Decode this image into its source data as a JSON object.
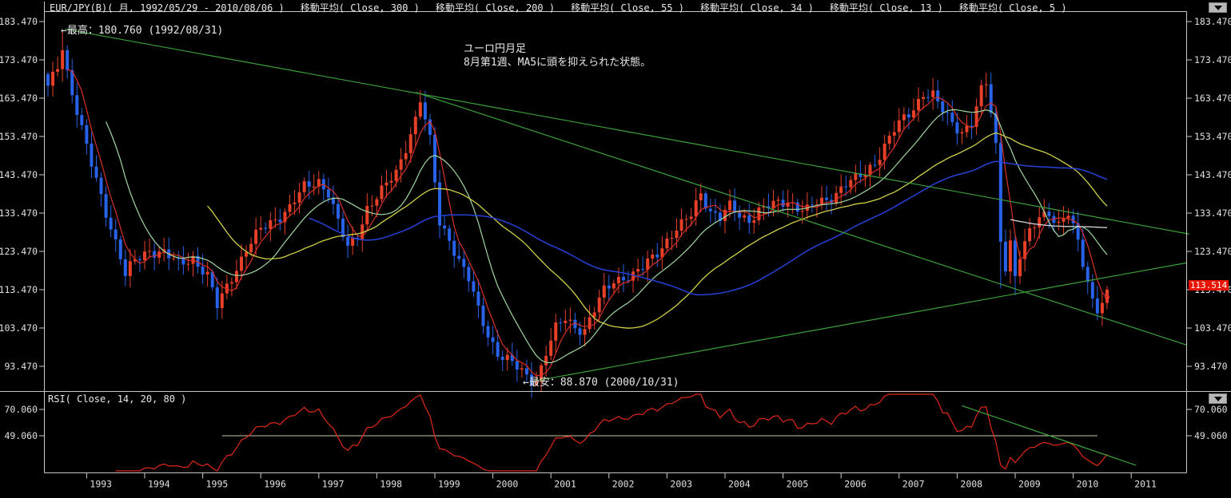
{
  "titlebar": {
    "instrument": "EUR/JPY(B)( 月, 1992/05/29 - 2010/08/06 )",
    "indicators": [
      "移動平均( Close, 300 )",
      "移動平均( Close, 200 )",
      "移動平均( Close, 55 )",
      "移動平均( Close, 34 )",
      "移動平均( Close, 13 )",
      "移動平均( Close, 5 )"
    ]
  },
  "annotations": {
    "high_label": "←最高：180.760 (1992/08/31)",
    "note_line1": "ユーロ円月足",
    "note_line2": "8月第1週、MA5に頭を抑えられた状態。",
    "low_label": "←最安：88.870 (2000/10/31)"
  },
  "price_axis": {
    "ticks": [
      183.47,
      173.47,
      163.47,
      153.47,
      143.47,
      133.47,
      123.47,
      113.47,
      103.47,
      93.47
    ],
    "last_price_label": "113.514",
    "badge_color": "#e81400"
  },
  "rsi_panel": {
    "label": "RSI( Close, 14, 20, 80 )",
    "ticks": [
      70.06,
      49.06
    ],
    "level_line_value": 49.06
  },
  "x_axis": {
    "years": [
      "1993",
      "1994",
      "1995",
      "1996",
      "1997",
      "1998",
      "1999",
      "2000",
      "2001",
      "2002",
      "2003",
      "2004",
      "2005",
      "2006",
      "2007",
      "2008",
      "2009",
      "2010",
      "2011"
    ]
  },
  "chart_data": {
    "type": "candlestick",
    "title": "EUR/JPY(B) monthly 1992/05/29 - 2010/08/06",
    "months": 220,
    "start_month": "1992/05",
    "ylim": [
      87.0,
      185.0
    ],
    "high_extreme": {
      "value": 180.76,
      "date": "1992/08/31"
    },
    "low_extreme": {
      "value": 88.87,
      "date": "2000/10/31"
    },
    "last_close": 113.514,
    "up_color": "#e84028",
    "down_color": "#2862e8",
    "close_anchors": [
      [
        0,
        166
      ],
      [
        2,
        172
      ],
      [
        3,
        176
      ],
      [
        5,
        165
      ],
      [
        7,
        155
      ],
      [
        9,
        146
      ],
      [
        11,
        138
      ],
      [
        13,
        130
      ],
      [
        15,
        122
      ],
      [
        16,
        117
      ],
      [
        18,
        121
      ],
      [
        21,
        124
      ],
      [
        24,
        123
      ],
      [
        27,
        120
      ],
      [
        30,
        122
      ],
      [
        33,
        117
      ],
      [
        35,
        109
      ],
      [
        38,
        117
      ],
      [
        41,
        124
      ],
      [
        44,
        129
      ],
      [
        47,
        132
      ],
      [
        50,
        135
      ],
      [
        53,
        140
      ],
      [
        56,
        142
      ],
      [
        58,
        139
      ],
      [
        60,
        131
      ],
      [
        62,
        124
      ],
      [
        64,
        128
      ],
      [
        66,
        135
      ],
      [
        69,
        139
      ],
      [
        72,
        144
      ],
      [
        74,
        151
      ],
      [
        76,
        158
      ],
      [
        77,
        163
      ],
      [
        79,
        152
      ],
      [
        81,
        131
      ],
      [
        83,
        127
      ],
      [
        85,
        121
      ],
      [
        87,
        116
      ],
      [
        89,
        108
      ],
      [
        91,
        102
      ],
      [
        93,
        97
      ],
      [
        95,
        95
      ],
      [
        97,
        93
      ],
      [
        99,
        91
      ],
      [
        101,
        89.5
      ],
      [
        103,
        97
      ],
      [
        105,
        103
      ],
      [
        107,
        106
      ],
      [
        109,
        104
      ],
      [
        111,
        103
      ],
      [
        113,
        108
      ],
      [
        115,
        113
      ],
      [
        117,
        116
      ],
      [
        119,
        117
      ],
      [
        121,
        117
      ],
      [
        123,
        119
      ],
      [
        125,
        122
      ],
      [
        127,
        125
      ],
      [
        129,
        128
      ],
      [
        131,
        130
      ],
      [
        133,
        133
      ],
      [
        135,
        139
      ],
      [
        137,
        134
      ],
      [
        139,
        132
      ],
      [
        141,
        135
      ],
      [
        143,
        133
      ],
      [
        145,
        132
      ],
      [
        147,
        134
      ],
      [
        149,
        135
      ],
      [
        151,
        136
      ],
      [
        153,
        137
      ],
      [
        155,
        135
      ],
      [
        157,
        134
      ],
      [
        159,
        136
      ],
      [
        161,
        137
      ],
      [
        163,
        139
      ],
      [
        165,
        141
      ],
      [
        167,
        142
      ],
      [
        169,
        144
      ],
      [
        171,
        147
      ],
      [
        173,
        151
      ],
      [
        175,
        155
      ],
      [
        177,
        158
      ],
      [
        179,
        161
      ],
      [
        181,
        165
      ],
      [
        183,
        164
      ],
      [
        185,
        160
      ],
      [
        187,
        157
      ],
      [
        189,
        155
      ],
      [
        191,
        157
      ],
      [
        193,
        165
      ],
      [
        194,
        167
      ],
      [
        195,
        160
      ],
      [
        196,
        151
      ],
      [
        197,
        126
      ],
      [
        198,
        120
      ],
      [
        199,
        126
      ],
      [
        200,
        117
      ],
      [
        201,
        122
      ],
      [
        203,
        128
      ],
      [
        205,
        133
      ],
      [
        207,
        134
      ],
      [
        209,
        130
      ],
      [
        211,
        133
      ],
      [
        213,
        126
      ],
      [
        215,
        116
      ],
      [
        216,
        111
      ],
      [
        217,
        108.5
      ],
      [
        218,
        110
      ],
      [
        219,
        113.514
      ]
    ],
    "wick_overrides": {
      "3": {
        "high": 180.76
      },
      "101": {
        "low": 88.87
      },
      "197": {
        "low": 113.8
      },
      "200": {
        "low": 112.0
      }
    },
    "moving_averages": [
      {
        "period": 5,
        "color": "#d83028",
        "width": 1.2
      },
      {
        "period": 13,
        "color": "#a0d8a0",
        "width": 1.2
      },
      {
        "period": 34,
        "color": "#d0d048",
        "width": 1.3
      },
      {
        "period": 55,
        "color": "#2840d8",
        "width": 1.5
      },
      {
        "period": 200,
        "color": "#d8d8d8",
        "width": 1.3
      },
      {
        "period": 300,
        "color": "#887800",
        "width": 1.2
      }
    ],
    "trend_lines": [
      {
        "m1": 3.5,
        "v1": 181.5,
        "m2": 236,
        "v2": 128,
        "color": "#3da03d"
      },
      {
        "m1": 100,
        "v1": 89.5,
        "m2": 235.5,
        "v2": 120.5,
        "color": "#3da03d"
      },
      {
        "m1": 76,
        "v1": 165,
        "m2": 235.5,
        "v2": 99,
        "color": "#3da03d"
      }
    ],
    "rsi": {
      "period": 14,
      "line_color": "#e02818",
      "level_line": {
        "value": 49.06,
        "m1": 36,
        "m2": 217,
        "color": "#c8c8a0"
      },
      "trend_line": {
        "m1": 189,
        "r1": 73,
        "m2": 225,
        "r2": 25.5,
        "color": "#3da03d"
      }
    }
  }
}
